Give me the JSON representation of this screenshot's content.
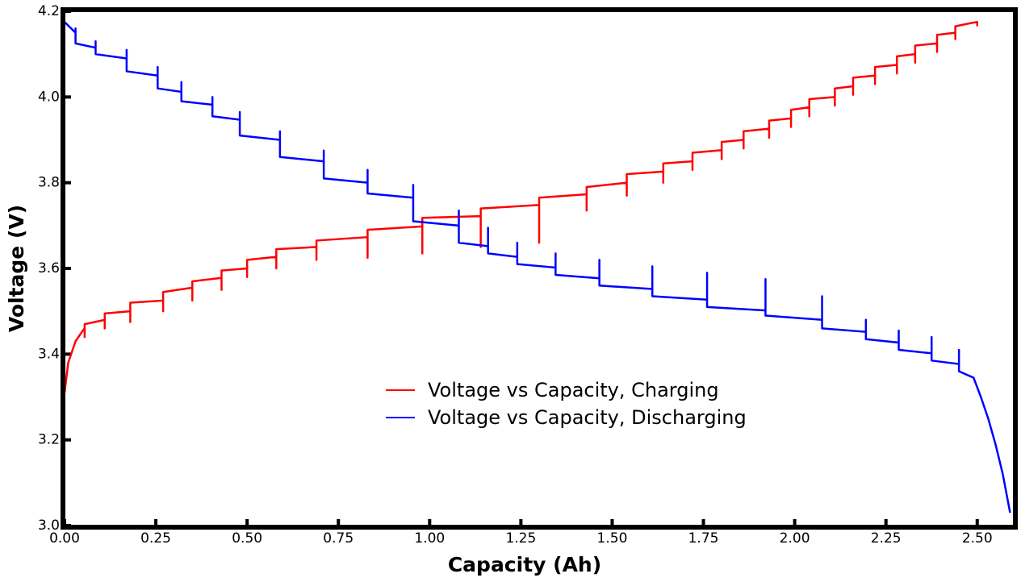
{
  "chart_data": {
    "type": "line",
    "xlabel": "Capacity (Ah)",
    "ylabel": "Voltage (V)",
    "xlim": [
      0,
      2.6
    ],
    "ylim": [
      3.0,
      4.2
    ],
    "xticks": [
      {
        "value": 0,
        "label": "0.00"
      },
      0.25,
      {
        "value": 0.5,
        "label": "0.50"
      },
      0.75,
      {
        "value": 1,
        "label": "1.00"
      },
      1.25,
      {
        "value": 1.5,
        "label": "1.50"
      },
      1.75,
      {
        "value": 2,
        "label": "2.00"
      },
      2.25,
      {
        "value": 2.5,
        "label": "2.50"
      }
    ],
    "yticks": [
      {
        "value": 3,
        "label": "3.0"
      },
      3.2,
      3.4,
      3.6,
      3.8,
      {
        "value": 4,
        "label": "4.0"
      },
      4.2
    ],
    "grid": false,
    "legend": "center",
    "series": [
      {
        "name": "Voltage vs Capacity, Charging",
        "color": "#ff0000",
        "x": [
          0,
          0.01,
          0.03,
          0.05,
          0.055,
          0.055,
          0.055,
          0.11,
          0.11,
          0.11,
          0.18,
          0.18,
          0.18,
          0.27,
          0.27,
          0.27,
          0.35,
          0.35,
          0.35,
          0.43,
          0.43,
          0.43,
          0.5,
          0.5,
          0.5,
          0.58,
          0.58,
          0.58,
          0.69,
          0.69,
          0.69,
          0.83,
          0.83,
          0.83,
          0.98,
          0.98,
          0.98,
          1.14,
          1.14,
          1.14,
          1.3,
          1.3,
          1.3,
          1.43,
          1.43,
          1.43,
          1.54,
          1.54,
          1.54,
          1.64,
          1.64,
          1.64,
          1.72,
          1.72,
          1.72,
          1.8,
          1.8,
          1.8,
          1.86,
          1.86,
          1.86,
          1.93,
          1.93,
          1.93,
          1.99,
          1.99,
          1.99,
          2.04,
          2.04,
          2.04,
          2.11,
          2.11,
          2.11,
          2.16,
          2.16,
          2.16,
          2.22,
          2.22,
          2.22,
          2.28,
          2.28,
          2.28,
          2.33,
          2.33,
          2.33,
          2.39,
          2.39,
          2.39,
          2.44,
          2.44,
          2.44,
          2.48,
          2.5,
          2.5
        ],
        "values": [
          3.31,
          3.38,
          3.43,
          3.455,
          3.46,
          3.44,
          3.47,
          3.48,
          3.46,
          3.495,
          3.5,
          3.475,
          3.52,
          3.525,
          3.5,
          3.545,
          3.555,
          3.525,
          3.57,
          3.578,
          3.55,
          3.595,
          3.6,
          3.58,
          3.62,
          3.627,
          3.6,
          3.645,
          3.65,
          3.62,
          3.665,
          3.673,
          3.625,
          3.69,
          3.698,
          3.635,
          3.718,
          3.722,
          3.65,
          3.74,
          3.748,
          3.66,
          3.765,
          3.773,
          3.735,
          3.79,
          3.8,
          3.77,
          3.82,
          3.826,
          3.8,
          3.845,
          3.85,
          3.83,
          3.87,
          3.876,
          3.855,
          3.895,
          3.9,
          3.88,
          3.92,
          3.926,
          3.905,
          3.945,
          3.95,
          3.93,
          3.97,
          3.976,
          3.955,
          3.995,
          4.0,
          3.98,
          4.02,
          4.025,
          4.005,
          4.045,
          4.05,
          4.03,
          4.07,
          4.075,
          4.055,
          4.095,
          4.1,
          4.08,
          4.12,
          4.125,
          4.105,
          4.145,
          4.15,
          4.135,
          4.165,
          4.172,
          4.175,
          4.165
        ]
      },
      {
        "name": "Voltage vs Capacity, Discharging",
        "color": "#0000ff",
        "x": [
          0,
          0.03,
          0.03,
          0.03,
          0.085,
          0.085,
          0.085,
          0.17,
          0.17,
          0.17,
          0.255,
          0.255,
          0.255,
          0.32,
          0.32,
          0.32,
          0.405,
          0.405,
          0.405,
          0.48,
          0.48,
          0.48,
          0.59,
          0.59,
          0.59,
          0.71,
          0.71,
          0.71,
          0.83,
          0.83,
          0.83,
          0.955,
          0.955,
          0.955,
          1.08,
          1.08,
          1.08,
          1.16,
          1.16,
          1.16,
          1.24,
          1.24,
          1.24,
          1.345,
          1.345,
          1.345,
          1.465,
          1.465,
          1.465,
          1.61,
          1.61,
          1.61,
          1.76,
          1.76,
          1.76,
          1.92,
          1.92,
          1.92,
          2.075,
          2.075,
          2.075,
          2.195,
          2.195,
          2.195,
          2.285,
          2.285,
          2.285,
          2.375,
          2.375,
          2.375,
          2.45,
          2.45,
          2.45,
          2.49,
          2.51,
          2.53,
          2.55,
          2.57,
          2.59
        ],
        "values": [
          4.175,
          4.15,
          4.16,
          4.125,
          4.115,
          4.13,
          4.1,
          4.09,
          4.11,
          4.06,
          4.05,
          4.07,
          4.02,
          4.012,
          4.035,
          3.99,
          3.982,
          4.0,
          3.955,
          3.947,
          3.965,
          3.91,
          3.9,
          3.92,
          3.86,
          3.85,
          3.875,
          3.81,
          3.8,
          3.83,
          3.775,
          3.765,
          3.795,
          3.71,
          3.7,
          3.735,
          3.66,
          3.652,
          3.695,
          3.635,
          3.627,
          3.66,
          3.61,
          3.602,
          3.635,
          3.585,
          3.577,
          3.62,
          3.56,
          3.552,
          3.605,
          3.535,
          3.527,
          3.59,
          3.51,
          3.502,
          3.575,
          3.49,
          3.48,
          3.535,
          3.46,
          3.452,
          3.48,
          3.435,
          3.427,
          3.455,
          3.41,
          3.402,
          3.44,
          3.385,
          3.377,
          3.41,
          3.36,
          3.345,
          3.3,
          3.25,
          3.19,
          3.12,
          3.03
        ]
      }
    ]
  }
}
